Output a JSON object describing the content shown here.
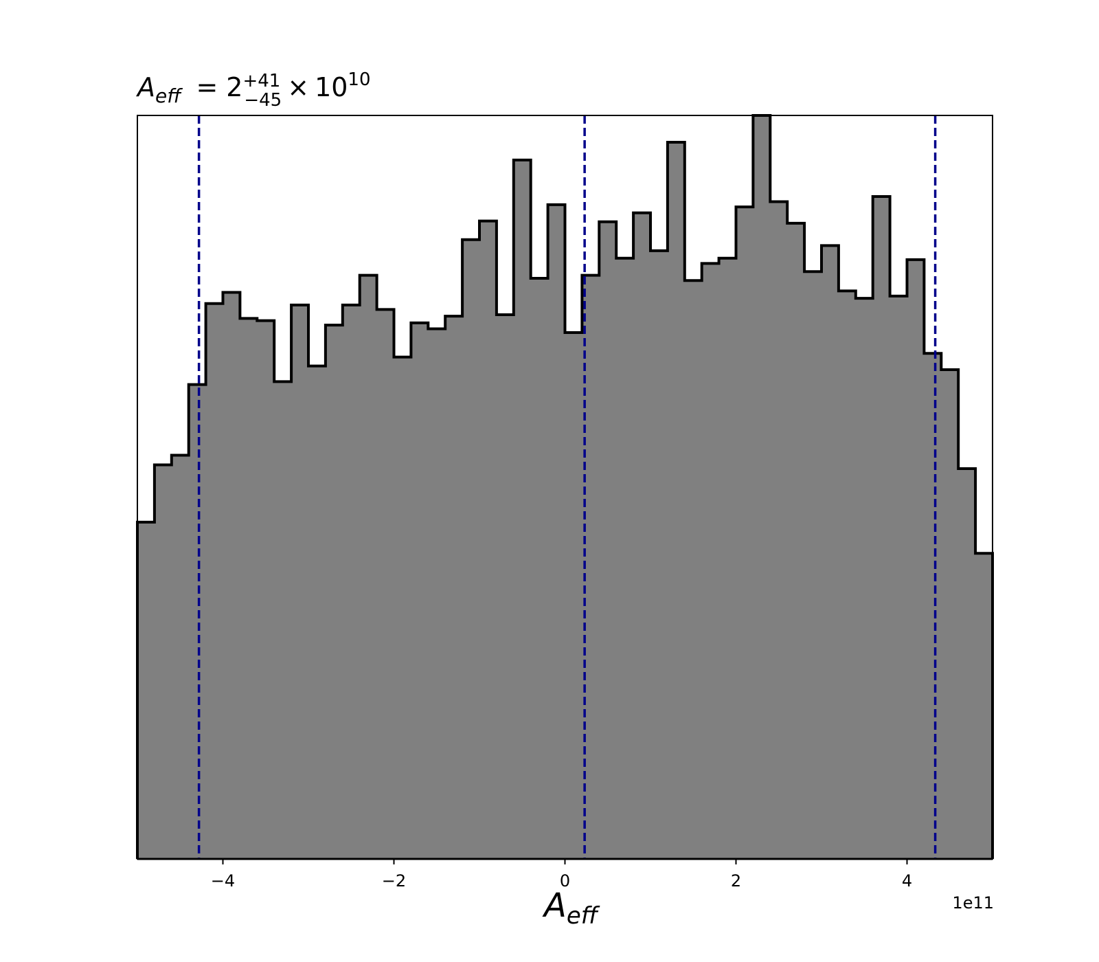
{
  "chart_data": {
    "type": "histogram",
    "title": {
      "symbol": "A",
      "subscript": "eff",
      "equals": "=",
      "median": "2",
      "upper": "+41",
      "lower": "−45",
      "times": "×",
      "base": "10",
      "exponent": "10"
    },
    "xlabel": {
      "symbol": "A",
      "subscript": "eff"
    },
    "x_offset_label": "1e11",
    "x_scale": 100000000000,
    "xlim": [
      -5.0,
      5.0
    ],
    "ylim": [
      0,
      1.0
    ],
    "y_ticks_shown": false,
    "x_ticks": [
      {
        "value": -4,
        "label": "−4"
      },
      {
        "value": -2,
        "label": "−2"
      },
      {
        "value": 0,
        "label": "0"
      },
      {
        "value": 2,
        "label": "2"
      },
      {
        "value": 4,
        "label": "4"
      }
    ],
    "bin_edges": [
      -5.0,
      -4.8,
      -4.6,
      -4.4,
      -4.2,
      -4.0,
      -3.8,
      -3.6,
      -3.4,
      -3.2,
      -3.0,
      -2.8,
      -2.6,
      -2.4,
      -2.2,
      -2.0,
      -1.8,
      -1.6,
      -1.4,
      -1.2,
      -1.0,
      -0.8,
      -0.6,
      -0.4,
      -0.2,
      0.0,
      0.2,
      0.4,
      0.6,
      0.8,
      1.0,
      1.2,
      1.4,
      1.6,
      1.8,
      2.0,
      2.2,
      2.4,
      2.6,
      2.8,
      3.0,
      3.2,
      3.4,
      3.6,
      3.8,
      4.0,
      4.2,
      4.4,
      4.6,
      4.8,
      5.0
    ],
    "counts": [
      0.453,
      0.53,
      0.543,
      0.638,
      0.747,
      0.762,
      0.727,
      0.724,
      0.642,
      0.745,
      0.663,
      0.718,
      0.745,
      0.785,
      0.739,
      0.675,
      0.721,
      0.713,
      0.73,
      0.833,
      0.858,
      0.732,
      0.94,
      0.781,
      0.88,
      0.708,
      0.785,
      0.857,
      0.808,
      0.869,
      0.818,
      0.964,
      0.778,
      0.801,
      0.808,
      0.877,
      1.0,
      0.884,
      0.855,
      0.79,
      0.825,
      0.764,
      0.754,
      0.891,
      0.757,
      0.806,
      0.68,
      0.658,
      0.525,
      0.411
    ],
    "quantile_lines": [
      -4.28,
      0.23,
      4.33
    ],
    "colors": {
      "fill": "#808080",
      "edge": "#000000",
      "quantile": "#00008b",
      "frame": "#000000"
    },
    "grid": false
  }
}
